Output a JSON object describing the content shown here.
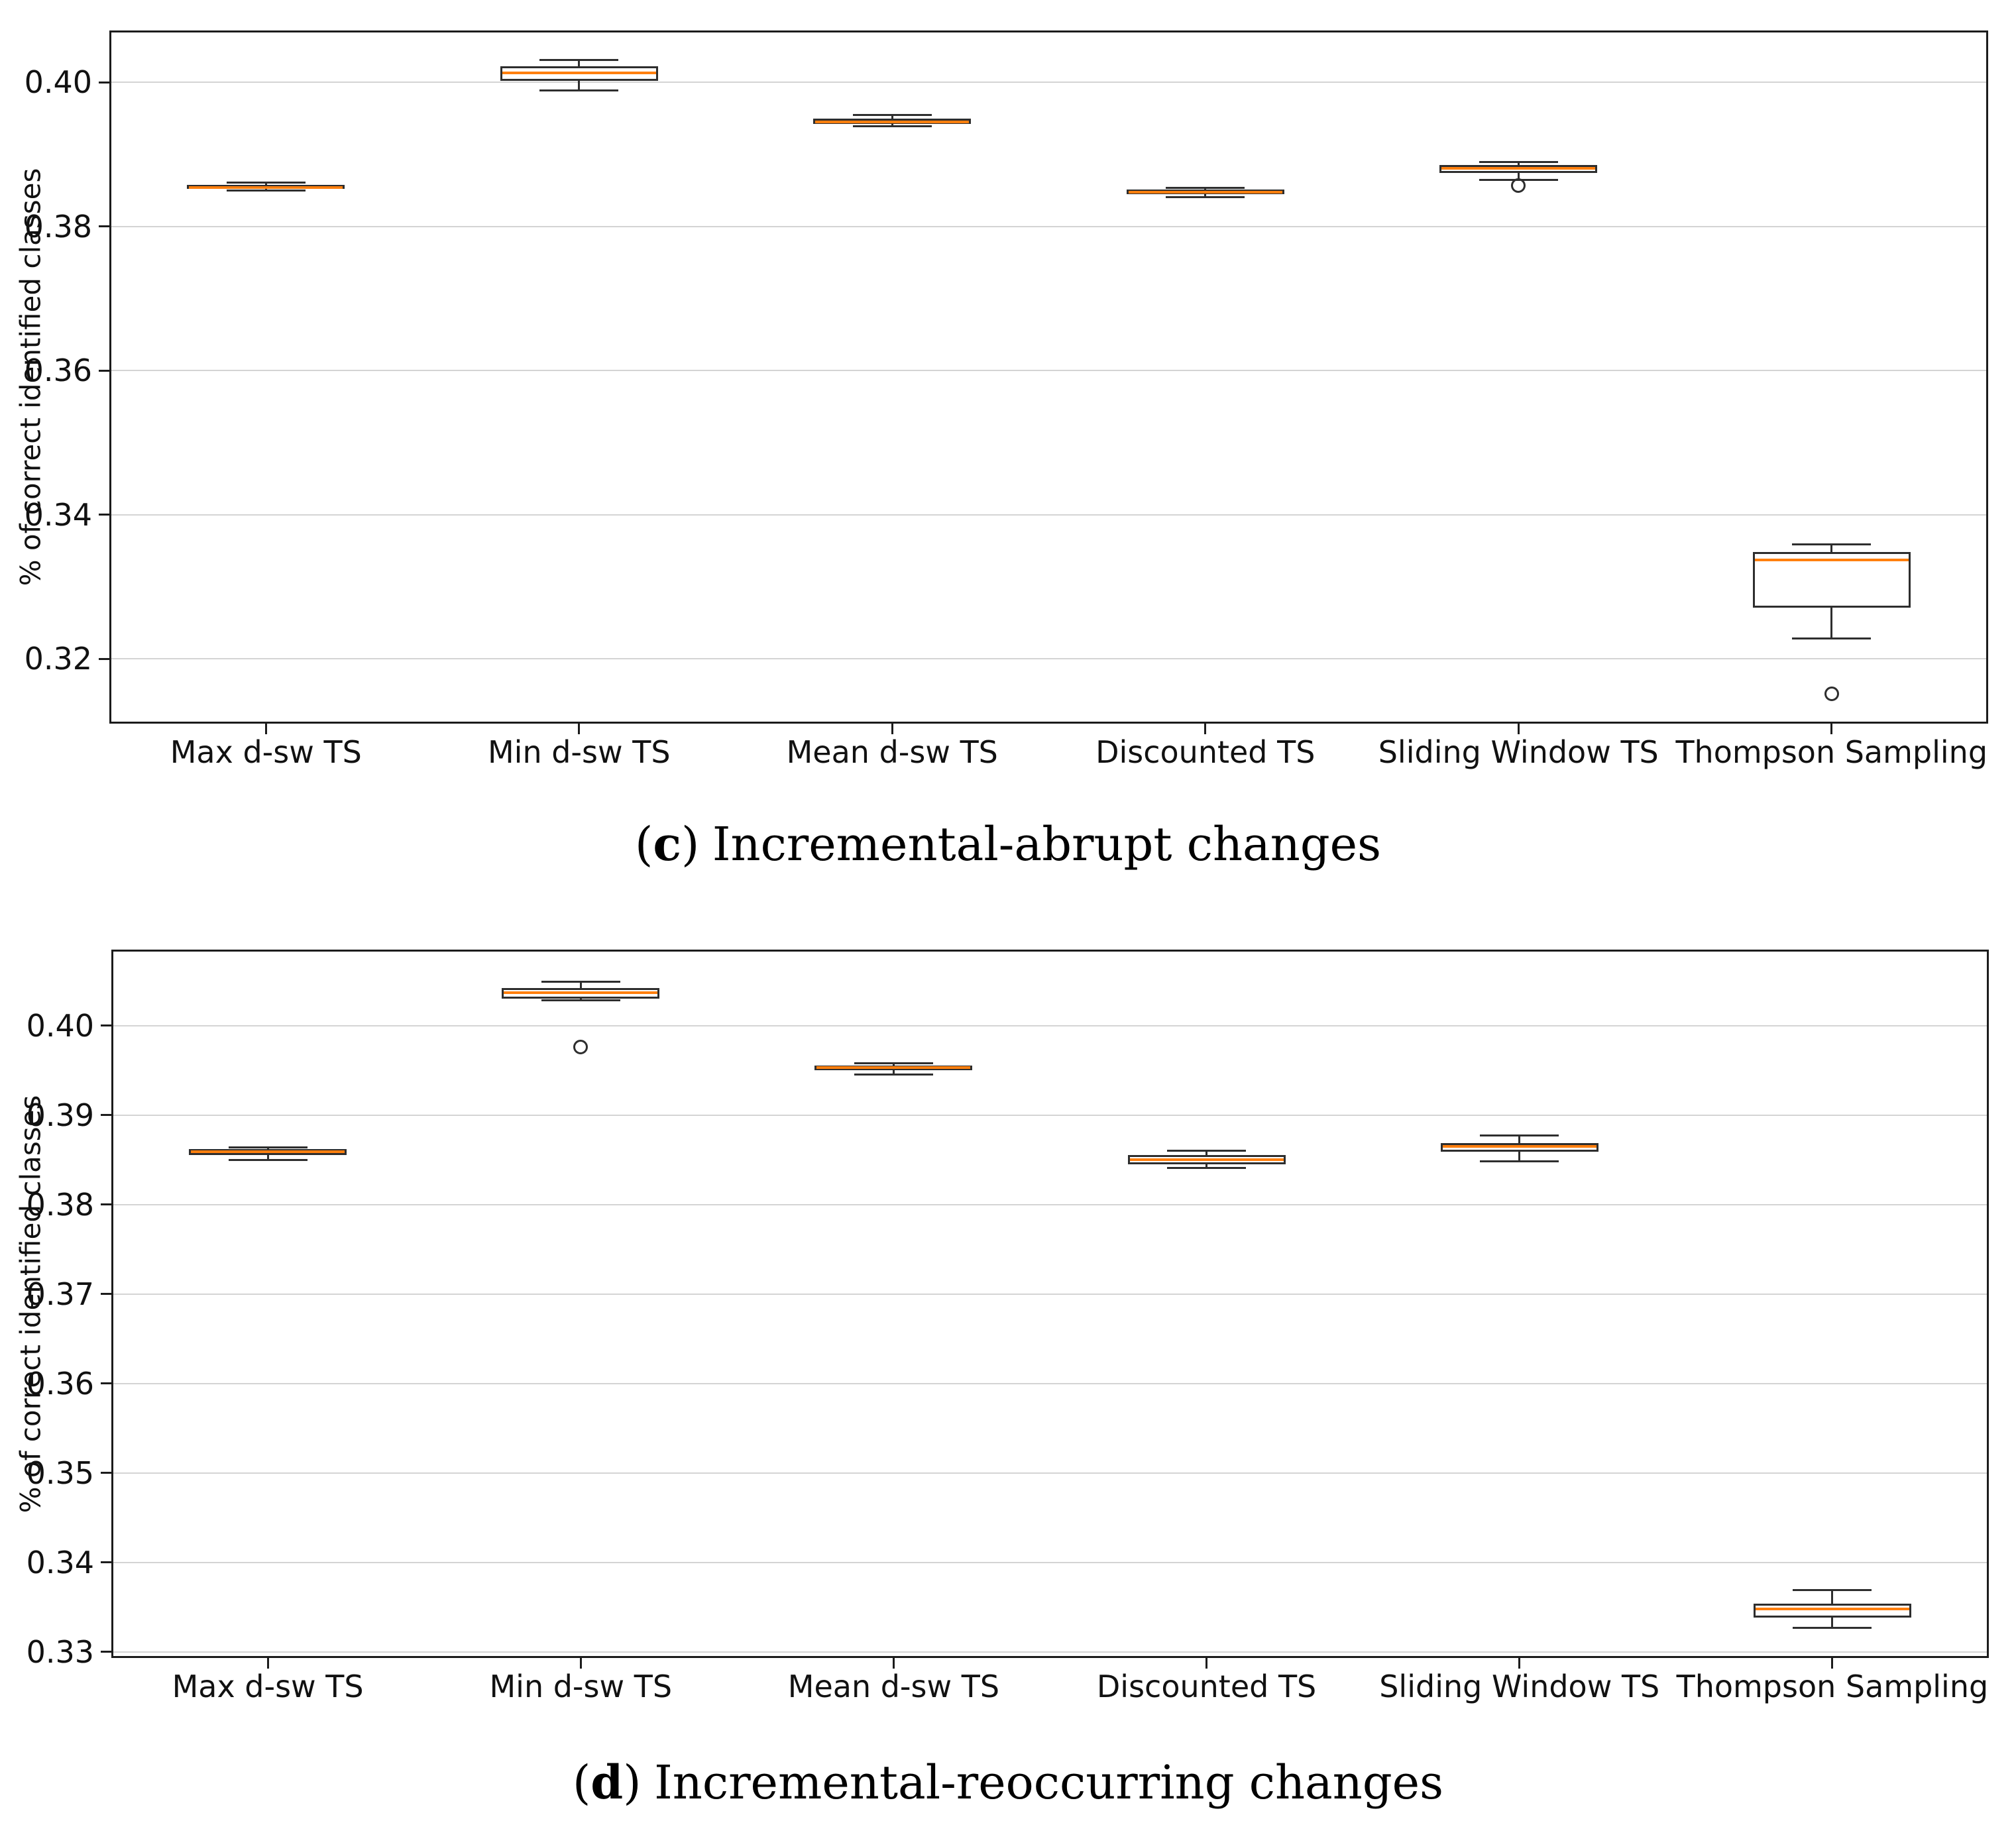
{
  "page_background": "#ffffff",
  "colors": {
    "median": "#ff7f0e",
    "box_edge": "#2e2e2e",
    "grid": "#d4d4d4",
    "axis": "#1c1c1c",
    "text": "#111111"
  },
  "chart_data": [
    {
      "type": "boxplot",
      "panel": "c",
      "caption": {
        "prefix": "(",
        "letter": "c",
        "suffix": ")",
        "title": "Incremental-abrupt changes"
      },
      "ylabel": "% of correct identified classes",
      "xlabel": "",
      "grid": "horizontal",
      "legend": "none",
      "ylim": [
        0.311,
        0.4072
      ],
      "yticks": [
        0.32,
        0.34,
        0.36,
        0.38,
        0.4
      ],
      "ytick_labels": [
        "0.32",
        "0.34",
        "0.36",
        "0.38",
        "0.40"
      ],
      "categories": [
        "Max d-sw TS",
        "Min d-sw TS",
        "Mean d-sw TS",
        "Discounted TS",
        "Sliding Window TS",
        "Thompson Sampling"
      ],
      "boxes": [
        {
          "category": "Max d-sw TS",
          "whislo": 0.385,
          "q1": 0.3852,
          "med": 0.3854,
          "q3": 0.3858,
          "whishi": 0.3861,
          "fliers": []
        },
        {
          "category": "Min d-sw TS",
          "whislo": 0.3989,
          "q1": 0.4002,
          "med": 0.4013,
          "q3": 0.4022,
          "whishi": 0.4031,
          "fliers": []
        },
        {
          "category": "Mean d-sw TS",
          "whislo": 0.3939,
          "q1": 0.3942,
          "med": 0.3945,
          "q3": 0.395,
          "whishi": 0.3955,
          "fliers": []
        },
        {
          "category": "Discounted TS",
          "whislo": 0.3841,
          "q1": 0.3845,
          "med": 0.3848,
          "q3": 0.3851,
          "whishi": 0.3854,
          "fliers": []
        },
        {
          "category": "Sliding Window TS",
          "whislo": 0.3865,
          "q1": 0.3874,
          "med": 0.3881,
          "q3": 0.3885,
          "whishi": 0.3889,
          "fliers": [
            0.3857
          ]
        },
        {
          "category": "Thompson Sampling",
          "whislo": 0.3228,
          "q1": 0.3271,
          "med": 0.3337,
          "q3": 0.3348,
          "whishi": 0.3359,
          "fliers": [
            0.3151
          ]
        }
      ]
    },
    {
      "type": "boxplot",
      "panel": "d",
      "caption": {
        "prefix": "(",
        "letter": "d",
        "suffix": ")",
        "title": "Incremental-reoccurring changes"
      },
      "ylabel": "% of correct identified classes",
      "xlabel": "",
      "grid": "horizontal",
      "legend": "none",
      "ylim": [
        0.3293,
        0.4085
      ],
      "yticks": [
        0.33,
        0.34,
        0.35,
        0.36,
        0.37,
        0.38,
        0.39,
        0.4
      ],
      "ytick_labels": [
        "0.33",
        "0.34",
        "0.35",
        "0.36",
        "0.37",
        "0.38",
        "0.39",
        "0.40"
      ],
      "categories": [
        "Max d-sw TS",
        "Min d-sw TS",
        "Mean d-sw TS",
        "Discounted TS",
        "Sliding Window TS",
        "Thompson Sampling"
      ],
      "boxes": [
        {
          "category": "Max d-sw TS",
          "whislo": 0.385,
          "q1": 0.3855,
          "med": 0.3859,
          "q3": 0.3862,
          "whishi": 0.3864,
          "fliers": []
        },
        {
          "category": "Min d-sw TS",
          "whislo": 0.4028,
          "q1": 0.403,
          "med": 0.4037,
          "q3": 0.4042,
          "whishi": 0.4049,
          "fliers": [
            0.3976
          ]
        },
        {
          "category": "Mean d-sw TS",
          "whislo": 0.3945,
          "q1": 0.395,
          "med": 0.3953,
          "q3": 0.3955,
          "whishi": 0.3958,
          "fliers": []
        },
        {
          "category": "Discounted TS",
          "whislo": 0.3841,
          "q1": 0.3845,
          "med": 0.385,
          "q3": 0.3855,
          "whishi": 0.386,
          "fliers": []
        },
        {
          "category": "Sliding Window TS",
          "whislo": 0.3848,
          "q1": 0.3859,
          "med": 0.3865,
          "q3": 0.3869,
          "whishi": 0.3877,
          "fliers": []
        },
        {
          "category": "Thompson Sampling",
          "whislo": 0.3327,
          "q1": 0.3338,
          "med": 0.3348,
          "q3": 0.3354,
          "whishi": 0.3369,
          "fliers": []
        }
      ]
    }
  ]
}
